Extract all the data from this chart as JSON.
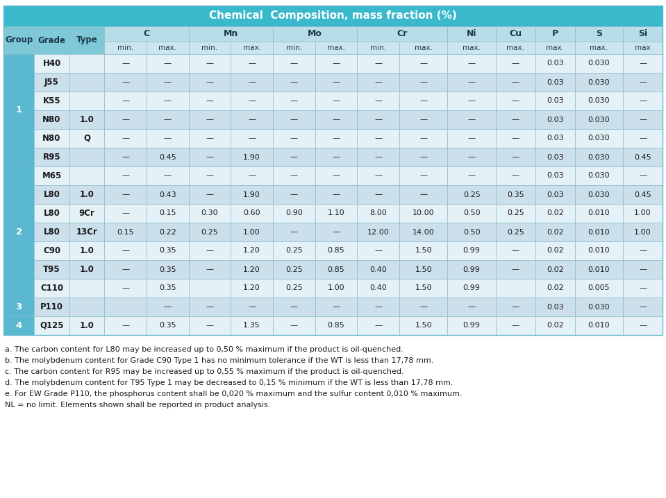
{
  "title": "Chemical  Composition, mass fraction (%)",
  "title_bg": "#3ab8cc",
  "title_fg": "#ffffff",
  "header_bg_dark": "#7ec8d8",
  "header_bg_light": "#b8dce8",
  "header_bg_sub": "#cce6f0",
  "group_col_bg": "#5ab8d0",
  "row_bg_light": "#e4f2f8",
  "row_bg_mid": "#cce0ec",
  "border_color": "#8cc8d8",
  "text_dark": "#1a3a4a",
  "col_widths_raw": [
    3.5,
    4.0,
    4.0,
    4.8,
    4.8,
    4.8,
    4.8,
    4.8,
    4.8,
    4.8,
    5.5,
    5.5,
    4.5,
    4.5,
    5.5,
    4.5
  ],
  "rows": [
    [
      "1",
      "H40",
      "",
      "—",
      "—",
      "—",
      "—",
      "—",
      "—",
      "—",
      "—",
      "—",
      "—",
      "0.03",
      "0.030",
      "—"
    ],
    [
      "1",
      "J55",
      "",
      "—",
      "—",
      "—",
      "—",
      "—",
      "—",
      "—",
      "—",
      "—",
      "—",
      "0.03",
      "0.030",
      "—"
    ],
    [
      "1",
      "K55",
      "",
      "—",
      "—",
      "—",
      "—",
      "—",
      "—",
      "—",
      "—",
      "—",
      "—",
      "0.03",
      "0.030",
      "—"
    ],
    [
      "1",
      "N80",
      "1.0",
      "—",
      "—",
      "—",
      "—",
      "—",
      "—",
      "—",
      "—",
      "—",
      "—",
      "0.03",
      "0.030",
      "—"
    ],
    [
      "1",
      "N80",
      "Q",
      "—",
      "—",
      "—",
      "—",
      "—",
      "—",
      "—",
      "—",
      "—",
      "—",
      "0.03",
      "0.030",
      "—"
    ],
    [
      "1",
      "R95",
      "",
      "—",
      "0.45",
      "—",
      "1.90",
      "—",
      "—",
      "—",
      "—",
      "—",
      "—",
      "0.03",
      "0.030",
      "0.45"
    ],
    [
      "2",
      "M65",
      "",
      "—",
      "—",
      "—",
      "—",
      "—",
      "—",
      "—",
      "—",
      "—",
      "—",
      "0.03",
      "0.030",
      "—"
    ],
    [
      "2",
      "L80",
      "1.0",
      "—",
      "0.43",
      "—",
      "1.90",
      "—",
      "—",
      "—",
      "—",
      "0.25",
      "0.35",
      "0.03",
      "0.030",
      "0.45"
    ],
    [
      "2",
      "L80",
      "9Cr",
      "—",
      "0.15",
      "0.30",
      "0.60",
      "0.90",
      "1.10",
      "8.00",
      "10.00",
      "0.50",
      "0.25",
      "0.02",
      "0.010",
      "1.00"
    ],
    [
      "2",
      "L80",
      "13Cr",
      "0.15",
      "0.22",
      "0.25",
      "1.00",
      "—",
      "—",
      "12.00",
      "14.00",
      "0.50",
      "0.25",
      "0.02",
      "0.010",
      "1.00"
    ],
    [
      "2",
      "C90",
      "1.0",
      "—",
      "0.35",
      "—",
      "1.20",
      "0.25",
      "0.85",
      "—",
      "1.50",
      "0.99",
      "—",
      "0.02",
      "0.010",
      "—"
    ],
    [
      "2",
      "T95",
      "1.0",
      "—",
      "0.35",
      "—",
      "1.20",
      "0.25",
      "0.85",
      "0.40",
      "1.50",
      "0.99",
      "—",
      "0.02",
      "0.010",
      "—"
    ],
    [
      "2",
      "C110",
      "",
      "—",
      "0.35",
      "",
      "1.20",
      "0.25",
      "1.00",
      "0.40",
      "1.50",
      "0.99",
      "",
      "0.02",
      "0.005",
      "—"
    ],
    [
      "3",
      "P110",
      "",
      "",
      "—",
      "—",
      "—",
      "—",
      "—",
      "—",
      "—",
      "—",
      "—",
      "0.03",
      "0.030",
      "—"
    ],
    [
      "4",
      "Q125",
      "1.0",
      "—",
      "0.35",
      "—",
      "1.35",
      "—",
      "0.85",
      "—",
      "1.50",
      "0.99",
      "—",
      "0.02",
      "0.010",
      "—"
    ]
  ],
  "footnotes": [
    "a. The carbon content for L80 may be increased up to 0,50 % maximum if the product is oil-quenched.",
    "b. The molybdenum content for Grade C90 Type 1 has no minimum tolerance if the WT is less than 17,78 mm.",
    "c. The carbon content for R95 may be increased up to 0,55 % maximum if the product is oil-quenched.",
    "d. The molybdenum content for T95 Type 1 may be decreased to 0,15 % minimum if the WT is less than 17,78 mm.",
    "e. For EW Grade P110, the phosphorus content shall be 0,020 % maximum and the sulfur content 0,010 % maximum.",
    "NL = no limit. Elements shown shall be reported in product analysis."
  ]
}
